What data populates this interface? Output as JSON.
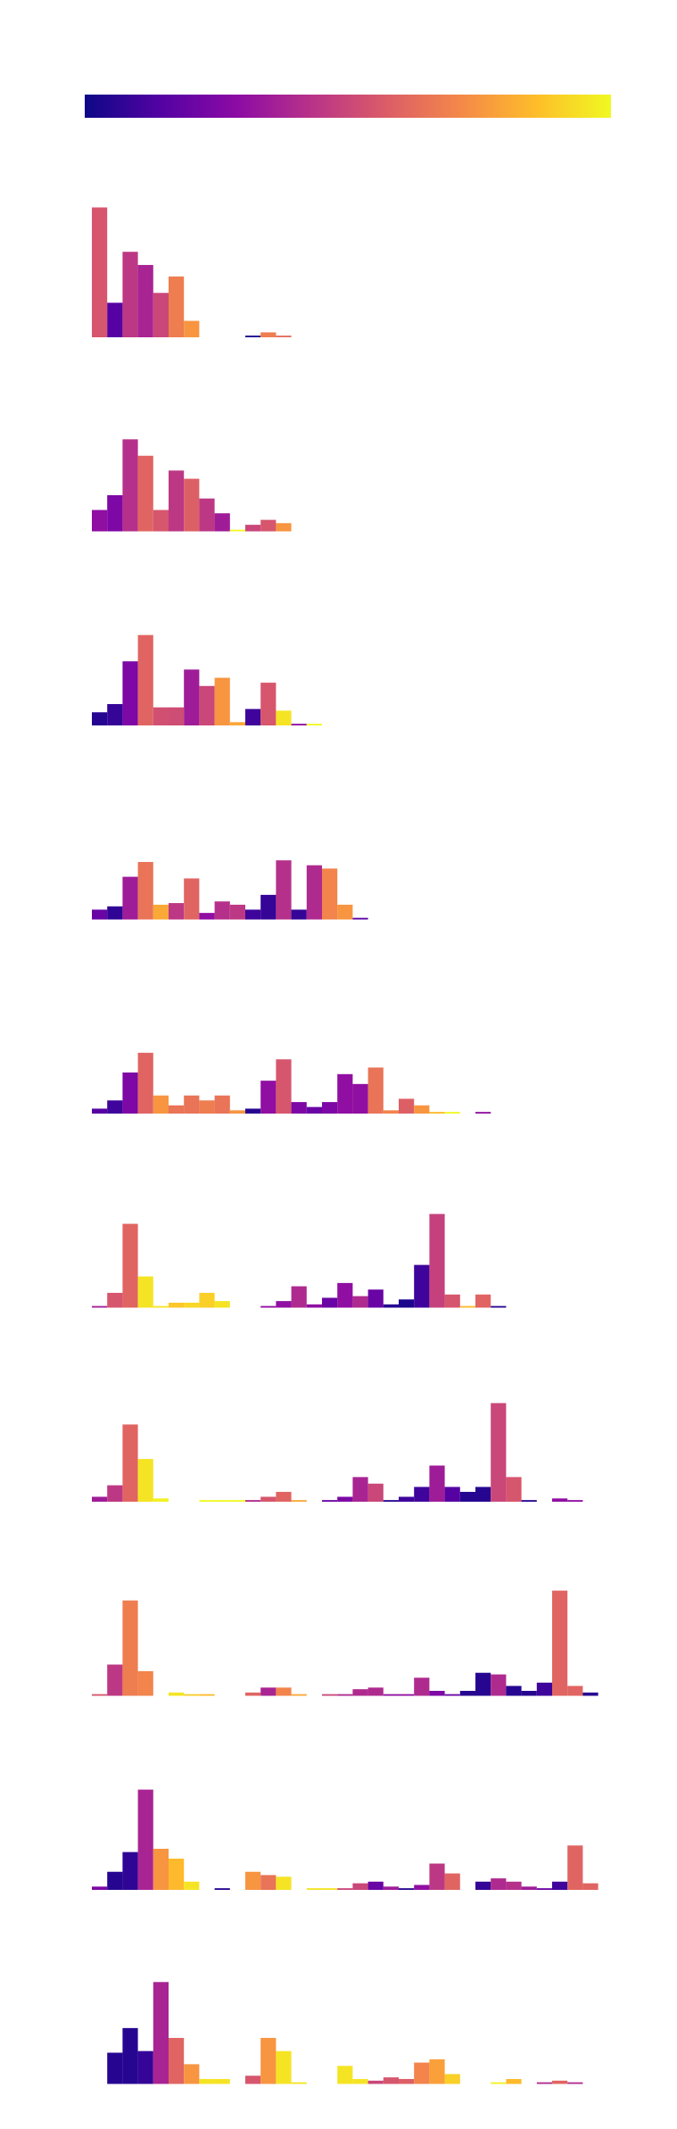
{
  "colorbar": {
    "colors": [
      "#0d0887",
      "#5302a3",
      "#8b0aa5",
      "#b83289",
      "#db5c68",
      "#f48849",
      "#febd2a",
      "#f0f921"
    ]
  },
  "chart_data": {
    "type": "bar",
    "layout": "stacked-rows",
    "ylim": [
      0,
      95
    ],
    "x_range": [
      0,
      34
    ],
    "colormap": "plasma",
    "axes_visible": false,
    "grid": false,
    "rows": [
      {
        "bars": [
          [
            0,
            0.55,
            79
          ],
          [
            1,
            0.15,
            21
          ],
          [
            2,
            0.45,
            52
          ],
          [
            3,
            0.38,
            44
          ],
          [
            4,
            0.5,
            27
          ],
          [
            5,
            0.68,
            37
          ],
          [
            6,
            0.75,
            10
          ],
          [
            10,
            0.02,
            1
          ],
          [
            11,
            0.68,
            3
          ],
          [
            12,
            0.62,
            1
          ]
        ]
      },
      {
        "bars": [
          [
            0,
            0.3,
            13
          ],
          [
            1,
            0.25,
            22
          ],
          [
            2,
            0.42,
            56
          ],
          [
            3,
            0.6,
            46
          ],
          [
            4,
            0.55,
            13
          ],
          [
            5,
            0.45,
            37
          ],
          [
            6,
            0.58,
            32
          ],
          [
            7,
            0.45,
            20
          ],
          [
            8,
            0.35,
            11
          ],
          [
            9,
            1.0,
            1
          ],
          [
            10,
            0.5,
            4
          ],
          [
            11,
            0.55,
            7
          ],
          [
            12,
            0.75,
            5
          ]
        ]
      },
      {
        "bars": [
          [
            0,
            0.05,
            8
          ],
          [
            1,
            0.08,
            13
          ],
          [
            2,
            0.25,
            39
          ],
          [
            3,
            0.6,
            55
          ],
          [
            4,
            0.53,
            11
          ],
          [
            5,
            0.52,
            11
          ],
          [
            6,
            0.35,
            34
          ],
          [
            7,
            0.5,
            24
          ],
          [
            8,
            0.75,
            29
          ],
          [
            9,
            0.8,
            2
          ],
          [
            10,
            0.1,
            10
          ],
          [
            11,
            0.55,
            26
          ],
          [
            12,
            0.95,
            9
          ],
          [
            13,
            0.3,
            1
          ],
          [
            14,
            1.0,
            1
          ]
        ]
      },
      {
        "bars": [
          [
            0,
            0.2,
            6
          ],
          [
            1,
            0.07,
            8
          ],
          [
            2,
            0.35,
            26
          ],
          [
            3,
            0.65,
            35
          ],
          [
            4,
            0.8,
            9
          ],
          [
            5,
            0.45,
            10
          ],
          [
            6,
            0.6,
            25
          ],
          [
            7,
            0.3,
            4
          ],
          [
            8,
            0.42,
            11
          ],
          [
            9,
            0.45,
            9
          ],
          [
            10,
            0.1,
            6
          ],
          [
            11,
            0.08,
            15
          ],
          [
            12,
            0.42,
            36
          ],
          [
            13,
            0.08,
            6
          ],
          [
            14,
            0.4,
            33
          ],
          [
            15,
            0.7,
            31
          ],
          [
            16,
            0.75,
            9
          ],
          [
            17,
            0.15,
            1
          ]
        ]
      },
      {
        "bars": [
          [
            0,
            0.15,
            3
          ],
          [
            1,
            0.1,
            8
          ],
          [
            2,
            0.25,
            25
          ],
          [
            3,
            0.6,
            37
          ],
          [
            4,
            0.75,
            11
          ],
          [
            5,
            0.65,
            5
          ],
          [
            6,
            0.65,
            11
          ],
          [
            7,
            0.68,
            8
          ],
          [
            8,
            0.65,
            11
          ],
          [
            9,
            0.75,
            2
          ],
          [
            10,
            0.05,
            3
          ],
          [
            11,
            0.3,
            20
          ],
          [
            12,
            0.55,
            33
          ],
          [
            13,
            0.25,
            7
          ],
          [
            14,
            0.2,
            4
          ],
          [
            15,
            0.25,
            7
          ],
          [
            16,
            0.3,
            24
          ],
          [
            17,
            0.3,
            18
          ],
          [
            18,
            0.65,
            28
          ],
          [
            19,
            0.7,
            2
          ],
          [
            20,
            0.58,
            9
          ],
          [
            21,
            0.75,
            5
          ],
          [
            22,
            0.85,
            1
          ],
          [
            23,
            1.0,
            1
          ],
          [
            25,
            0.3,
            1
          ]
        ]
      },
      {
        "bars": [
          [
            0,
            0.35,
            1
          ],
          [
            1,
            0.55,
            9
          ],
          [
            2,
            0.6,
            51
          ],
          [
            3,
            0.95,
            19
          ],
          [
            4,
            0.95,
            1
          ],
          [
            5,
            0.88,
            3
          ],
          [
            6,
            0.92,
            3
          ],
          [
            7,
            0.9,
            9
          ],
          [
            8,
            0.95,
            4
          ],
          [
            11,
            0.3,
            1
          ],
          [
            12,
            0.3,
            4
          ],
          [
            13,
            0.4,
            13
          ],
          [
            14,
            0.3,
            2
          ],
          [
            15,
            0.2,
            6
          ],
          [
            16,
            0.3,
            15
          ],
          [
            17,
            0.4,
            7
          ],
          [
            18,
            0.2,
            11
          ],
          [
            19,
            0.05,
            2
          ],
          [
            20,
            0.03,
            5
          ],
          [
            21,
            0.1,
            26
          ],
          [
            22,
            0.48,
            57
          ],
          [
            23,
            0.55,
            8
          ],
          [
            24,
            0.85,
            1
          ],
          [
            25,
            0.6,
            8
          ],
          [
            26,
            0.05,
            1
          ]
        ]
      },
      {
        "bars": [
          [
            0,
            0.35,
            3
          ],
          [
            1,
            0.45,
            10
          ],
          [
            2,
            0.6,
            47
          ],
          [
            3,
            0.95,
            26
          ],
          [
            4,
            0.98,
            2
          ],
          [
            7,
            1.0,
            1
          ],
          [
            8,
            1.0,
            1
          ],
          [
            9,
            1.0,
            1
          ],
          [
            10,
            0.4,
            1
          ],
          [
            11,
            0.55,
            3
          ],
          [
            12,
            0.6,
            6
          ],
          [
            13,
            0.8,
            1
          ],
          [
            15,
            0.2,
            1
          ],
          [
            16,
            0.25,
            3
          ],
          [
            17,
            0.38,
            15
          ],
          [
            18,
            0.5,
            11
          ],
          [
            19,
            0.05,
            1
          ],
          [
            20,
            0.1,
            3
          ],
          [
            21,
            0.1,
            9
          ],
          [
            22,
            0.35,
            22
          ],
          [
            23,
            0.15,
            9
          ],
          [
            24,
            0.05,
            6
          ],
          [
            25,
            0.05,
            9
          ],
          [
            26,
            0.5,
            60
          ],
          [
            27,
            0.55,
            15
          ],
          [
            28,
            0.05,
            1
          ],
          [
            30,
            0.3,
            2
          ],
          [
            31,
            0.3,
            1
          ]
        ]
      },
      {
        "bars": [
          [
            0,
            0.55,
            1
          ],
          [
            1,
            0.45,
            19
          ],
          [
            2,
            0.68,
            58
          ],
          [
            3,
            0.7,
            15
          ],
          [
            5,
            0.95,
            2
          ],
          [
            6,
            0.9,
            1
          ],
          [
            7,
            0.85,
            1
          ],
          [
            10,
            0.6,
            2
          ],
          [
            11,
            0.38,
            5
          ],
          [
            12,
            0.7,
            5
          ],
          [
            13,
            0.8,
            1
          ],
          [
            15,
            0.5,
            1
          ],
          [
            16,
            0.4,
            1
          ],
          [
            17,
            0.4,
            4
          ],
          [
            18,
            0.4,
            5
          ],
          [
            19,
            0.3,
            1
          ],
          [
            20,
            0.3,
            1
          ],
          [
            21,
            0.4,
            11
          ],
          [
            22,
            0.25,
            3
          ],
          [
            23,
            0.2,
            1
          ],
          [
            24,
            0.05,
            3
          ],
          [
            25,
            0.05,
            14
          ],
          [
            26,
            0.4,
            13
          ],
          [
            27,
            0.05,
            6
          ],
          [
            28,
            0.05,
            3
          ],
          [
            29,
            0.1,
            8
          ],
          [
            30,
            0.6,
            64
          ],
          [
            31,
            0.6,
            6
          ],
          [
            32,
            0.05,
            2
          ]
        ]
      },
      {
        "bars": [
          [
            0,
            0.25,
            2
          ],
          [
            1,
            0.05,
            11
          ],
          [
            2,
            0.07,
            23
          ],
          [
            3,
            0.38,
            61
          ],
          [
            4,
            0.75,
            25
          ],
          [
            5,
            0.85,
            19
          ],
          [
            6,
            0.95,
            5
          ],
          [
            8,
            0.05,
            1
          ],
          [
            10,
            0.75,
            11
          ],
          [
            11,
            0.65,
            9
          ],
          [
            12,
            0.95,
            8
          ],
          [
            14,
            0.95,
            1
          ],
          [
            15,
            0.95,
            1
          ],
          [
            16,
            0.5,
            1
          ],
          [
            17,
            0.5,
            4
          ],
          [
            18,
            0.2,
            5
          ],
          [
            19,
            0.35,
            2
          ],
          [
            20,
            0.05,
            1
          ],
          [
            21,
            0.3,
            3
          ],
          [
            22,
            0.45,
            16
          ],
          [
            23,
            0.6,
            10
          ],
          [
            25,
            0.08,
            5
          ],
          [
            26,
            0.4,
            7
          ],
          [
            27,
            0.42,
            5
          ],
          [
            28,
            0.35,
            2
          ],
          [
            29,
            0.2,
            1
          ],
          [
            30,
            0.1,
            5
          ],
          [
            31,
            0.6,
            27
          ],
          [
            32,
            0.6,
            4
          ]
        ]
      },
      {
        "bars": [
          [
            1,
            0.05,
            19
          ],
          [
            2,
            0.05,
            34
          ],
          [
            3,
            0.08,
            20
          ],
          [
            4,
            0.38,
            62
          ],
          [
            5,
            0.6,
            28
          ],
          [
            6,
            0.75,
            12
          ],
          [
            7,
            0.95,
            3
          ],
          [
            8,
            0.95,
            3
          ],
          [
            10,
            0.55,
            5
          ],
          [
            11,
            0.75,
            28
          ],
          [
            12,
            0.95,
            20
          ],
          [
            13,
            0.95,
            1
          ],
          [
            16,
            0.95,
            11
          ],
          [
            17,
            0.95,
            3
          ],
          [
            18,
            0.5,
            2
          ],
          [
            19,
            0.55,
            4
          ],
          [
            20,
            0.58,
            3
          ],
          [
            21,
            0.7,
            13
          ],
          [
            22,
            0.78,
            15
          ],
          [
            23,
            0.9,
            6
          ],
          [
            26,
            0.98,
            1
          ],
          [
            27,
            0.85,
            3
          ],
          [
            29,
            0.4,
            1
          ],
          [
            30,
            0.6,
            2
          ],
          [
            31,
            0.4,
            1
          ]
        ]
      }
    ]
  }
}
